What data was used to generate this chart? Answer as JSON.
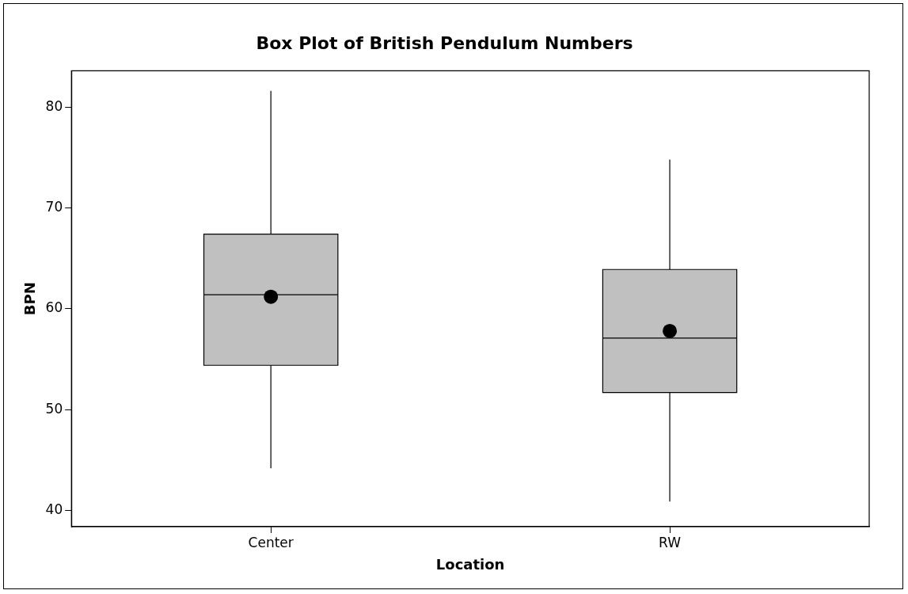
{
  "chart_data": {
    "type": "box",
    "title": "Box Plot of British Pendulum Numbers",
    "xlabel": "Location",
    "ylabel": "BPN",
    "categories": [
      "Center",
      "RW"
    ],
    "color": "#c0c0c0",
    "boxes": [
      {
        "low": 44.2,
        "q1": 54.4,
        "median": 61.4,
        "q3": 67.4,
        "high": 81.6,
        "mean": 61.2
      },
      {
        "low": 40.9,
        "q1": 51.7,
        "median": 57.1,
        "q3": 63.9,
        "high": 74.8,
        "mean": 57.8
      }
    ],
    "ylim": [
      38.4,
      83.6
    ],
    "yticks": [
      40,
      50,
      60,
      70,
      80
    ],
    "legend": false
  }
}
